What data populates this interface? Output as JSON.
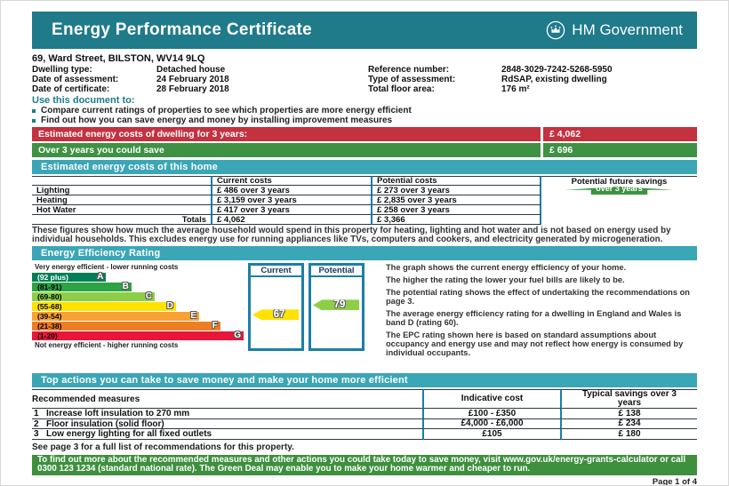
{
  "colors": {
    "header_teal": "#1f7a8a",
    "section_teal": "#3aa6b6",
    "banner_red": "#c4313f",
    "banner_green": "#3f9243",
    "footer_green": "#3e8f3e",
    "column_border_blue": "#1c7fa8"
  },
  "header": {
    "title": "Energy Performance Certificate",
    "gov_label": "HM Government"
  },
  "address": "69, Ward Street, BILSTON, WV14 9LQ",
  "property_info": {
    "left": [
      {
        "label": "Dwelling type:",
        "value": "Detached house"
      },
      {
        "label": "Date of assessment:",
        "value": "24 February 2018"
      },
      {
        "label": "Date of certificate:",
        "value": "28 February 2018"
      }
    ],
    "right": [
      {
        "label": "Reference number:",
        "value": "2848-3029-7242-5268-5950"
      },
      {
        "label": "Type of assessment:",
        "value": "RdSAP, existing dwelling"
      },
      {
        "label": "Total floor area:",
        "value": "176 m²"
      }
    ]
  },
  "use_document": {
    "heading": "Use this document to:",
    "bullets": [
      "Compare current ratings of properties to see which properties are more energy efficient",
      "Find out how you can save energy and money by installing improvement measures"
    ]
  },
  "banners": {
    "estimated": {
      "label": "Estimated energy costs of dwelling for 3 years:",
      "value": "£ 4,062"
    },
    "save": {
      "label": "Over 3 years you could save",
      "value": "£ 696"
    }
  },
  "sections": {
    "costs_title": "Estimated energy costs of this home",
    "eer_title": "Energy Efficiency Rating",
    "actions_title": "Top actions you can take to save money and make your home more efficient"
  },
  "costs_table": {
    "headers": {
      "current": "Current costs",
      "potential": "Potential costs",
      "future": "Potential future savings"
    },
    "rows": [
      {
        "name": "Lighting",
        "current": "£ 486 over 3 years",
        "potential": "£ 273 over 3 years"
      },
      {
        "name": "Heating",
        "current": "£ 3,159 over 3 years",
        "potential": "£ 2,835 over 3 years"
      },
      {
        "name": "Hot Water",
        "current": "£ 417 over 3 years",
        "potential": "£ 258 over 3 years"
      }
    ],
    "totals": {
      "label": "Totals",
      "current": "£ 4,062",
      "potential": "£ 3,366"
    },
    "savings_arrow": {
      "lines": [
        "You could",
        "save £ 696",
        "over 3 years"
      ],
      "color": "#3f9243"
    }
  },
  "costs_note": "These figures show how much the average household would spend in this property for heating, lighting and hot water and is not based on energy used by individual households. This excludes energy use for running appliances like TVs, computers and cookers, and electricity generated by microgeneration.",
  "chart_data": {
    "type": "epc-rating-bar",
    "title": "Energy Efficiency Rating",
    "top_label": "Very energy efficient - lower running costs",
    "bottom_label": "Not energy efficient - higher running costs",
    "columns": [
      "Current",
      "Potential"
    ],
    "bands": [
      {
        "range": "(92 plus)",
        "letter": "A",
        "color": "#008054",
        "width_pct": 35,
        "text_color": "white"
      },
      {
        "range": "(81-91)",
        "letter": "B",
        "color": "#2da343",
        "width_pct": 47,
        "text_color": "black"
      },
      {
        "range": "(69-80)",
        "letter": "C",
        "color": "#8dce46",
        "width_pct": 58,
        "text_color": "black"
      },
      {
        "range": "(55-68)",
        "letter": "D",
        "color": "#ffe200",
        "width_pct": 68,
        "text_color": "black"
      },
      {
        "range": "(39-54)",
        "letter": "E",
        "color": "#f7a233",
        "width_pct": 79,
        "text_color": "black"
      },
      {
        "range": "(21-38)",
        "letter": "F",
        "color": "#ee7e23",
        "width_pct": 89,
        "text_color": "black"
      },
      {
        "range": "(1-20)",
        "letter": "G",
        "color": "#e9153b",
        "width_pct": 100,
        "text_color": "black"
      }
    ],
    "current": {
      "value": 67,
      "band_index": 3,
      "color": "#ffe200"
    },
    "potential": {
      "value": 79,
      "band_index": 2,
      "color": "#8dce46"
    }
  },
  "eer": {
    "paragraphs": [
      "The graph shows the current energy efficiency of your home.",
      "The higher the rating the lower your fuel bills are likely to be.",
      "The potential rating shows the effect of undertaking the recommendations on page 3.",
      "The average energy efficiency rating for a dwelling in England and Wales is band D (rating 60).",
      "The EPC rating shown here is based on standard assumptions about occupancy and energy use and may not reflect how energy is consumed by individual occupants."
    ]
  },
  "actions_table": {
    "headers": {
      "measures": "Recommended measures",
      "cost": "Indicative cost",
      "savings": "Typical savings over 3 years"
    },
    "rows": [
      {
        "num": "1",
        "measure": "Increase loft insulation to 270 mm",
        "cost": "£100 - £350",
        "savings": "£ 138"
      },
      {
        "num": "2",
        "measure": "Floor insulation (solid floor)",
        "cost": "£4,000 - £6,000",
        "savings": "£ 234"
      },
      {
        "num": "3",
        "measure": "Low energy lighting for all fixed outlets",
        "cost": "£105",
        "savings": "£ 180"
      }
    ]
  },
  "see_page3": "See page 3 for a full list of recommendations for this property.",
  "footer_green": {
    "pre": "To find out more about the recommended measures and other actions you could take today to save money, visit www.gov.uk/energy-grants-calculator or call ",
    "phone": "0300 123 1234",
    "post": " (standard national rate). The Green Deal may enable you to make your home warmer and cheaper to run."
  },
  "page_number": "Page 1 of 4"
}
